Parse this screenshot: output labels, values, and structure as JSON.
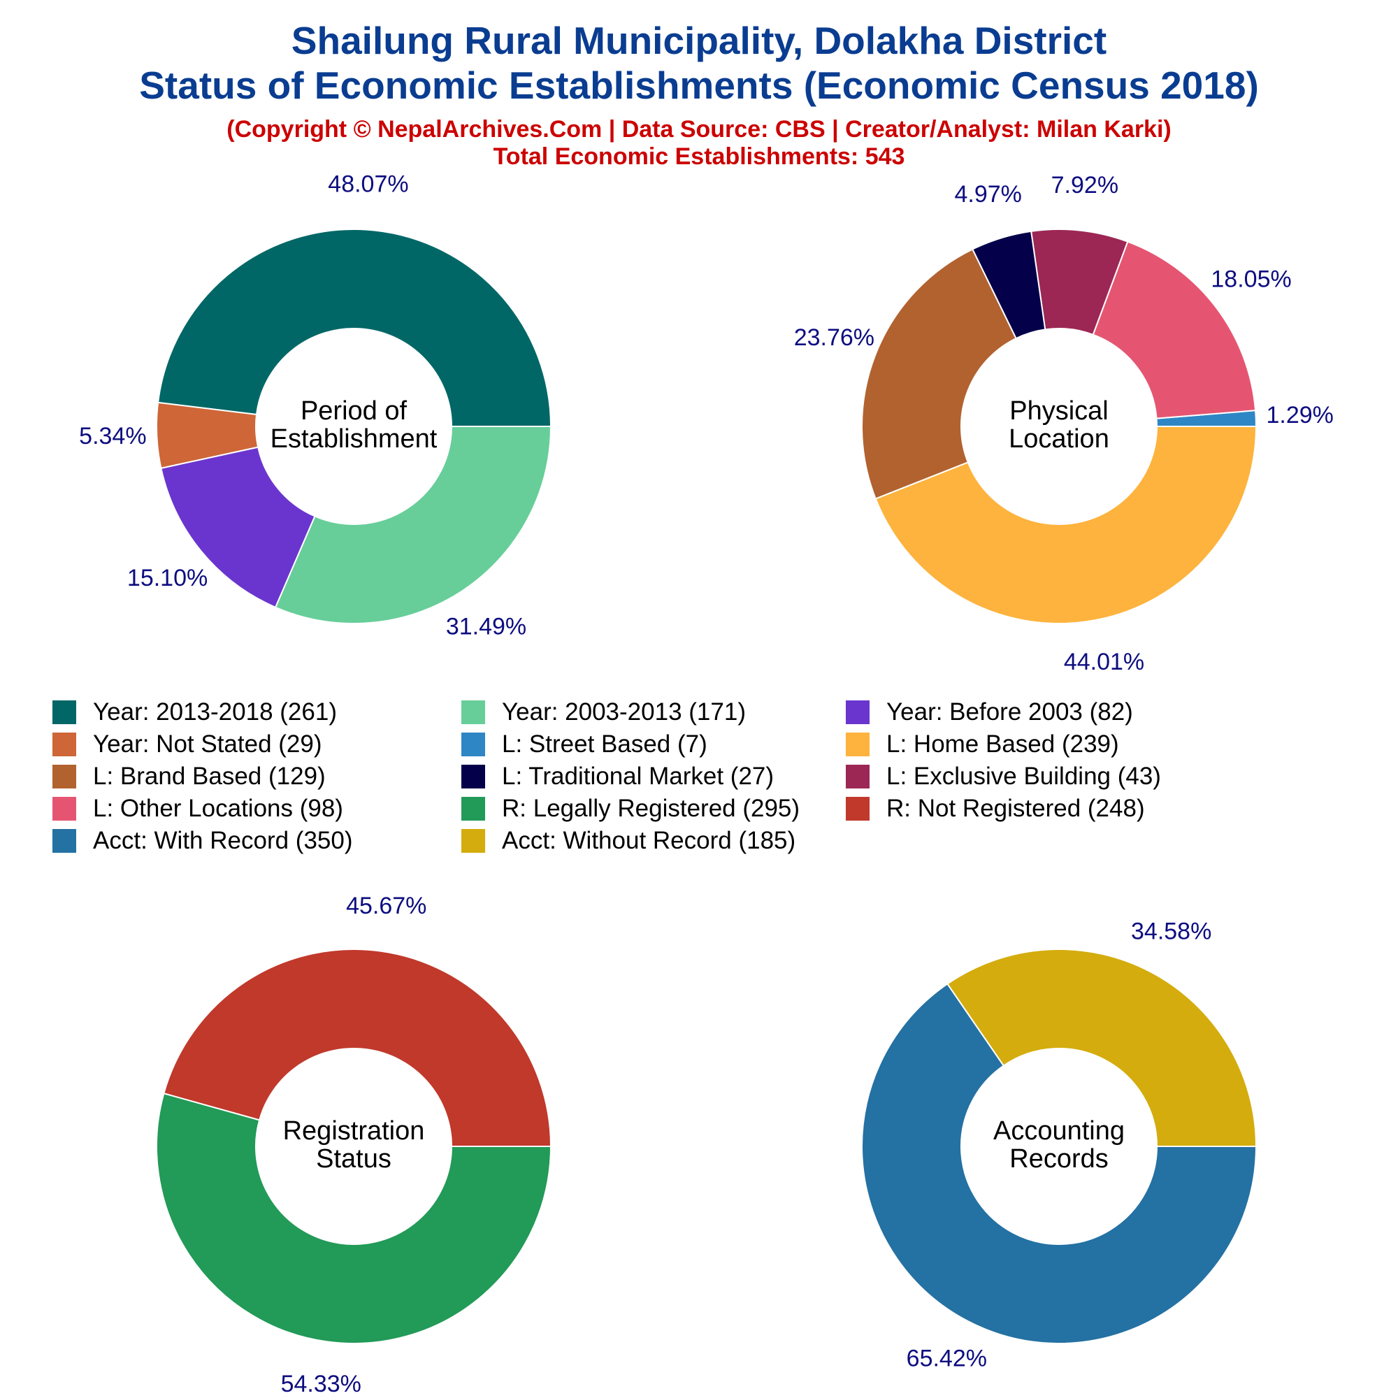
{
  "header": {
    "title_line1": "Shailung Rural Municipality, Dolakha District",
    "title_line2": "Status of Economic Establishments (Economic Census 2018)",
    "copyright": "(Copyright © NepalArchives.Com | Data Source: CBS | Creator/Analyst: Milan Karki)",
    "total": "Total Economic Establishments: 543"
  },
  "colors": {
    "pct_label": "#0d0d80",
    "center_label": "#000000"
  },
  "chart_data": [
    {
      "type": "pie",
      "center_label": [
        "Period of",
        "Establishment"
      ],
      "slices": [
        {
          "label": "Year: 2013-2018",
          "value": 261,
          "pct": "48.07%",
          "color": "#016766"
        },
        {
          "label": "Year: Not Stated",
          "value": 29,
          "pct": "5.34%",
          "color": "#ce6637"
        },
        {
          "label": "Year: Before 2003",
          "value": 82,
          "pct": "15.10%",
          "color": "#6a35ce"
        },
        {
          "label": "Year: 2003-2013",
          "value": 171,
          "pct": "31.49%",
          "color": "#67ce99"
        }
      ]
    },
    {
      "type": "pie",
      "center_label": [
        "Physical",
        "Location"
      ],
      "slices": [
        {
          "label": "L: Street Based",
          "value": 7,
          "pct": "1.29%",
          "color": "#2f86c5"
        },
        {
          "label": "L: Other Locations",
          "value": 98,
          "pct": "18.05%",
          "color": "#e55572"
        },
        {
          "label": "L: Exclusive Building",
          "value": 43,
          "pct": "7.92%",
          "color": "#9c2754"
        },
        {
          "label": "L: Traditional Market",
          "value": 27,
          "pct": "4.97%",
          "color": "#04004a"
        },
        {
          "label": "L: Brand Based",
          "value": 129,
          "pct": "23.76%",
          "color": "#b2622f"
        },
        {
          "label": "L: Home Based",
          "value": 239,
          "pct": "44.01%",
          "color": "#fdb33d"
        }
      ]
    },
    {
      "type": "pie",
      "center_label": [
        "Registration",
        "Status"
      ],
      "slices": [
        {
          "label": "R: Not Registered",
          "value": 248,
          "pct": "45.67%",
          "color": "#c0392b"
        },
        {
          "label": "R: Legally Registered",
          "value": 295,
          "pct": "54.33%",
          "color": "#229a58"
        }
      ]
    },
    {
      "type": "pie",
      "center_label": [
        "Accounting",
        "Records"
      ],
      "slices": [
        {
          "label": "Acct: Without Record",
          "value": 185,
          "pct": "34.58%",
          "color": "#d4ac0d"
        },
        {
          "label": "Acct: With Record",
          "value": 350,
          "pct": "65.42%",
          "color": "#2471a3"
        }
      ]
    }
  ],
  "legend": [
    {
      "label": "Year: 2013-2018 (261)",
      "color": "#016766"
    },
    {
      "label": "Year: 2003-2013 (171)",
      "color": "#67ce99"
    },
    {
      "label": "Year: Before 2003 (82)",
      "color": "#6a35ce"
    },
    {
      "label": "Year: Not Stated (29)",
      "color": "#ce6637"
    },
    {
      "label": "L: Street Based (7)",
      "color": "#2f86c5"
    },
    {
      "label": "L: Home Based (239)",
      "color": "#fdb33d"
    },
    {
      "label": "L: Brand Based (129)",
      "color": "#b2622f"
    },
    {
      "label": "L: Traditional Market (27)",
      "color": "#04004a"
    },
    {
      "label": "L: Exclusive Building (43)",
      "color": "#9c2754"
    },
    {
      "label": "L: Other Locations (98)",
      "color": "#e55572"
    },
    {
      "label": "R: Legally Registered (295)",
      "color": "#229a58"
    },
    {
      "label": "R: Not Registered (248)",
      "color": "#c0392b"
    },
    {
      "label": "Acct: With Record (350)",
      "color": "#2471a3"
    },
    {
      "label": "Acct: Without Record (185)",
      "color": "#d4ac0d"
    }
  ]
}
